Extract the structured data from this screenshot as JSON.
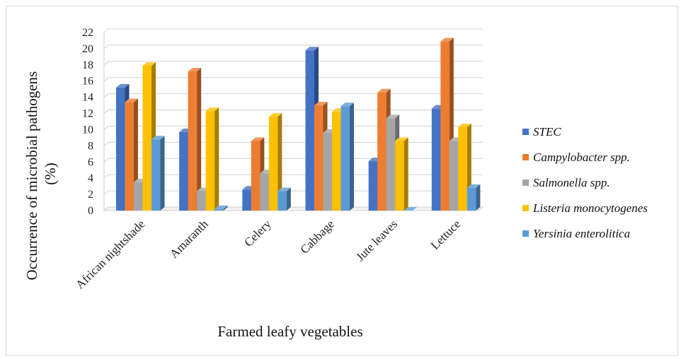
{
  "chart_data": {
    "type": "bar",
    "title": "",
    "xlabel": "Farmed leafy vegetables",
    "ylabel": "Occurrence of microbial pathogens (%)",
    "ylabel_lines": [
      "Occurrence of microbial pathogens",
      "(%)"
    ],
    "ylim": [
      0,
      22
    ],
    "yticks": [
      0,
      2,
      4,
      6,
      8,
      10,
      12,
      14,
      16,
      18,
      20,
      22
    ],
    "grid": true,
    "legend_position": "right",
    "categories": [
      "African nightshade",
      "Amaranth",
      "Celery",
      "Cabbage",
      "Jute leaves",
      "Lettuce"
    ],
    "series": [
      {
        "name": "STEC",
        "color": "#4472C4",
        "values": [
          15.2,
          9.7,
          2.6,
          19.8,
          6.1,
          12.6
        ]
      },
      {
        "name": "Campylobacter spp.",
        "color": "#ED7D31",
        "values": [
          13.4,
          17.2,
          8.6,
          13.0,
          14.6,
          20.9
        ]
      },
      {
        "name": "Salmonella spp.",
        "color": "#A5A5A5",
        "values": [
          3.5,
          2.4,
          4.6,
          9.6,
          11.4,
          8.6
        ]
      },
      {
        "name": "Listeria monocytogenes",
        "color": "#FFC000",
        "values": [
          17.9,
          12.3,
          11.6,
          12.2,
          8.6,
          10.3
        ]
      },
      {
        "name": "Yersinia enterolitica",
        "color": "#5B9BD5",
        "values": [
          8.8,
          0.2,
          2.4,
          12.9,
          0.0,
          2.8
        ]
      }
    ]
  }
}
